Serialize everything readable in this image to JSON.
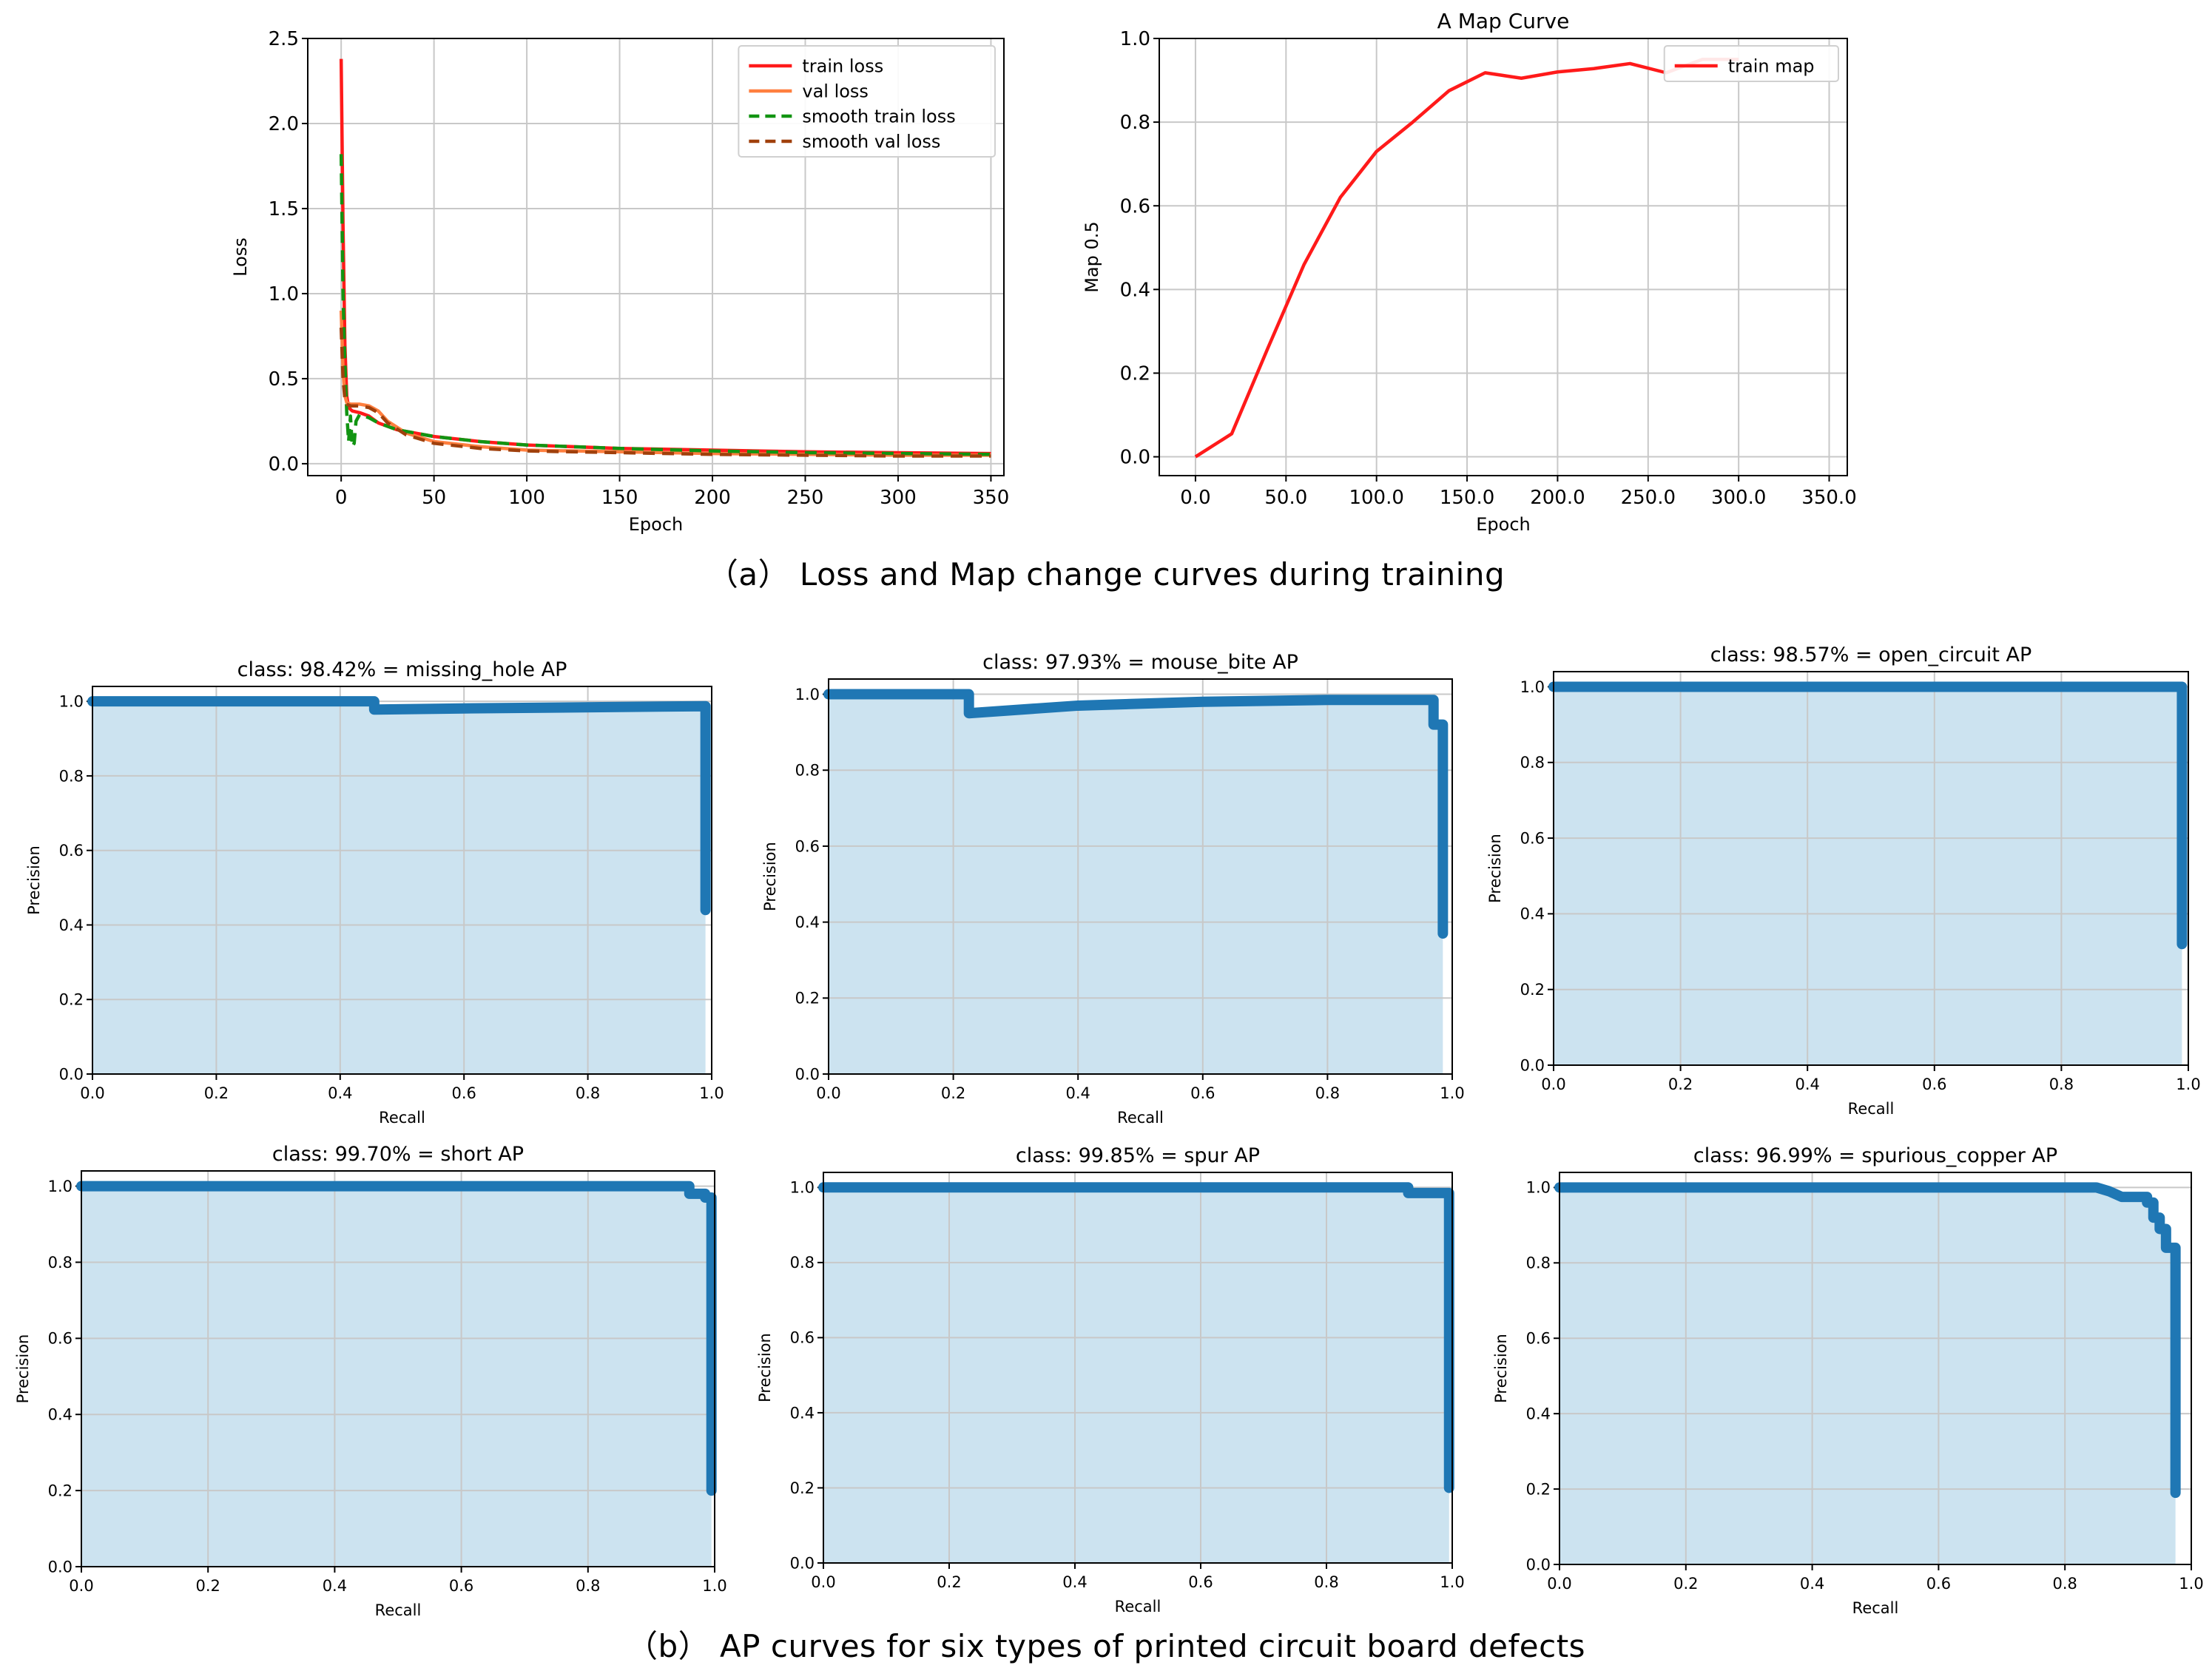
{
  "captions": {
    "a": "（a） Loss and Map change curves during training",
    "b": "（b） AP curves for six types of printed circuit board defects"
  },
  "colors": {
    "train_loss": "#ff1a1a",
    "val_loss": "#ff7f3f",
    "smooth_train_loss": "#129412",
    "smooth_val_loss": "#a0400c",
    "train_map": "#ff1a1a",
    "pr_line": "#1f77b4",
    "pr_fill": "#cce3f0",
    "grid": "#c8c8c8"
  },
  "chart_data": [
    {
      "id": "loss",
      "type": "line",
      "title": "",
      "xlabel": "Epoch",
      "ylabel": "Loss",
      "xlim": [
        -18,
        357
      ],
      "ylim": [
        -0.07,
        2.5
      ],
      "xticks": [
        0,
        50,
        100,
        150,
        200,
        250,
        300,
        350
      ],
      "yticks": [
        0.0,
        0.5,
        1.0,
        1.5,
        2.0,
        2.5
      ],
      "grid": true,
      "legend_position": "top-right",
      "series": [
        {
          "name": "train loss",
          "color": "train_loss",
          "dash": "",
          "x": [
            0,
            1,
            2,
            3,
            4,
            6,
            10,
            15,
            20,
            30,
            50,
            75,
            100,
            150,
            200,
            250,
            300,
            350
          ],
          "y": [
            2.38,
            1.4,
            0.7,
            0.4,
            0.33,
            0.31,
            0.3,
            0.28,
            0.24,
            0.2,
            0.16,
            0.13,
            0.11,
            0.09,
            0.08,
            0.07,
            0.065,
            0.06
          ]
        },
        {
          "name": "val loss",
          "color": "val_loss",
          "dash": "",
          "x": [
            0,
            1,
            2,
            3,
            5,
            10,
            15,
            20,
            25,
            35,
            50,
            75,
            100,
            150,
            200,
            250,
            300,
            350
          ],
          "y": [
            0.9,
            0.55,
            0.4,
            0.36,
            0.35,
            0.35,
            0.34,
            0.31,
            0.25,
            0.18,
            0.13,
            0.1,
            0.08,
            0.07,
            0.06,
            0.055,
            0.05,
            0.05
          ]
        },
        {
          "name": "smooth train loss",
          "color": "smooth_train_loss",
          "dash": "16,10",
          "x": [
            0,
            1,
            2,
            3,
            4,
            5,
            6,
            7,
            8,
            10,
            15,
            20,
            30,
            50,
            75,
            100,
            150,
            200,
            250,
            300,
            350
          ],
          "y": [
            1.82,
            1.0,
            0.6,
            0.3,
            0.13,
            0.28,
            0.1,
            0.12,
            0.25,
            0.29,
            0.27,
            0.24,
            0.2,
            0.16,
            0.13,
            0.11,
            0.09,
            0.075,
            0.065,
            0.06,
            0.055
          ]
        },
        {
          "name": "smooth val loss",
          "color": "smooth_val_loss",
          "dash": "16,10",
          "x": [
            0,
            1,
            2,
            3,
            5,
            10,
            15,
            20,
            25,
            35,
            50,
            75,
            100,
            150,
            200,
            250,
            300,
            350
          ],
          "y": [
            0.8,
            0.5,
            0.38,
            0.35,
            0.34,
            0.34,
            0.33,
            0.3,
            0.24,
            0.17,
            0.12,
            0.09,
            0.075,
            0.065,
            0.055,
            0.05,
            0.045,
            0.045
          ]
        }
      ]
    },
    {
      "id": "map",
      "type": "line",
      "title": "A Map Curve",
      "xlabel": "Epoch",
      "ylabel": "Map 0.5",
      "xlim": [
        -20,
        360
      ],
      "ylim": [
        -0.045,
        1.0
      ],
      "xticks": [
        0,
        50,
        100,
        150,
        200,
        250,
        300,
        350
      ],
      "yticks": [
        0.0,
        0.2,
        0.4,
        0.6,
        0.8,
        1.0
      ],
      "grid": true,
      "legend_position": "top-right",
      "series": [
        {
          "name": "train map",
          "color": "train_map",
          "dash": "",
          "x": [
            0,
            20,
            40,
            60,
            80,
            100,
            120,
            140,
            160,
            180,
            200,
            220,
            240,
            260,
            280,
            300
          ],
          "y": [
            0.0,
            0.055,
            0.26,
            0.46,
            0.62,
            0.73,
            0.8,
            0.875,
            0.918,
            0.905,
            0.92,
            0.928,
            0.94,
            0.918,
            0.95,
            0.95
          ]
        }
      ]
    },
    {
      "id": "missing_hole",
      "type": "area",
      "title": "class: 98.42% = missing_hole AP",
      "xlabel": "Recall",
      "ylabel": "Precision",
      "xlim": [
        0.0,
        1.0
      ],
      "ylim": [
        0.0,
        1.04
      ],
      "xticks": [
        0.0,
        0.2,
        0.4,
        0.6,
        0.8,
        1.0
      ],
      "yticks": [
        0.0,
        0.2,
        0.4,
        0.6,
        0.8,
        1.0
      ],
      "grid": true,
      "x": [
        0.0,
        0.455,
        0.455,
        0.6,
        0.99,
        0.99,
        0.99
      ],
      "y": [
        1.0,
        1.0,
        0.978,
        0.981,
        0.987,
        0.7,
        0.44
      ]
    },
    {
      "id": "mouse_bite",
      "type": "area",
      "title": "class: 97.93% = mouse_bite AP",
      "xlabel": "Recall",
      "ylabel": "Precision",
      "xlim": [
        0.0,
        1.0
      ],
      "ylim": [
        0.0,
        1.04
      ],
      "xticks": [
        0.0,
        0.2,
        0.4,
        0.6,
        0.8,
        1.0
      ],
      "yticks": [
        0.0,
        0.2,
        0.4,
        0.6,
        0.8,
        1.0
      ],
      "grid": true,
      "x": [
        0.0,
        0.225,
        0.225,
        0.4,
        0.6,
        0.8,
        0.97,
        0.97,
        0.985,
        0.985,
        0.985
      ],
      "y": [
        1.0,
        1.0,
        0.95,
        0.97,
        0.98,
        0.985,
        0.985,
        0.92,
        0.92,
        0.6,
        0.37
      ]
    },
    {
      "id": "open_circuit",
      "type": "area",
      "title": "class: 98.57% = open_circuit AP",
      "xlabel": "Recall",
      "ylabel": "Precision",
      "xlim": [
        0.0,
        1.0
      ],
      "ylim": [
        0.0,
        1.04
      ],
      "xticks": [
        0.0,
        0.2,
        0.4,
        0.6,
        0.8,
        1.0
      ],
      "yticks": [
        0.0,
        0.2,
        0.4,
        0.6,
        0.8,
        1.0
      ],
      "grid": true,
      "x": [
        0.0,
        0.99,
        0.99,
        0.99
      ],
      "y": [
        1.0,
        1.0,
        0.7,
        0.32
      ]
    },
    {
      "id": "short",
      "type": "area",
      "title": "class: 99.70% = short AP",
      "xlabel": "Recall",
      "ylabel": "Precision",
      "xlim": [
        0.0,
        1.0
      ],
      "ylim": [
        0.0,
        1.04
      ],
      "xticks": [
        0.0,
        0.2,
        0.4,
        0.6,
        0.8,
        1.0
      ],
      "yticks": [
        0.0,
        0.2,
        0.4,
        0.6,
        0.8,
        1.0
      ],
      "grid": true,
      "x": [
        0.0,
        0.96,
        0.96,
        0.985,
        0.985,
        0.995,
        0.995,
        0.995
      ],
      "y": [
        1.0,
        1.0,
        0.98,
        0.98,
        0.97,
        0.97,
        0.75,
        0.2
      ]
    },
    {
      "id": "spur",
      "type": "area",
      "title": "class: 99.85% = spur AP",
      "xlabel": "Recall",
      "ylabel": "Precision",
      "xlim": [
        0.0,
        1.0
      ],
      "ylim": [
        0.0,
        1.04
      ],
      "xticks": [
        0.0,
        0.2,
        0.4,
        0.6,
        0.8,
        1.0
      ],
      "yticks": [
        0.0,
        0.2,
        0.4,
        0.6,
        0.8,
        1.0
      ],
      "grid": true,
      "x": [
        0.0,
        0.93,
        0.93,
        0.995,
        0.995,
        0.995
      ],
      "y": [
        1.0,
        1.0,
        0.985,
        0.985,
        0.9,
        0.2
      ]
    },
    {
      "id": "spurious_copper",
      "type": "area",
      "title": "class: 96.99% = spurious_copper AP",
      "xlabel": "Recall",
      "ylabel": "Precision",
      "xlim": [
        0.0,
        1.0
      ],
      "ylim": [
        0.0,
        1.04
      ],
      "xticks": [
        0.0,
        0.2,
        0.4,
        0.6,
        0.8,
        1.0
      ],
      "yticks": [
        0.0,
        0.2,
        0.4,
        0.6,
        0.8,
        1.0
      ],
      "grid": true,
      "x": [
        0.0,
        0.85,
        0.87,
        0.89,
        0.9,
        0.93,
        0.93,
        0.94,
        0.94,
        0.95,
        0.95,
        0.96,
        0.96,
        0.975,
        0.975,
        0.975
      ],
      "y": [
        1.0,
        1.0,
        0.99,
        0.975,
        0.975,
        0.975,
        0.96,
        0.96,
        0.92,
        0.92,
        0.89,
        0.89,
        0.84,
        0.84,
        0.8,
        0.19
      ]
    }
  ]
}
